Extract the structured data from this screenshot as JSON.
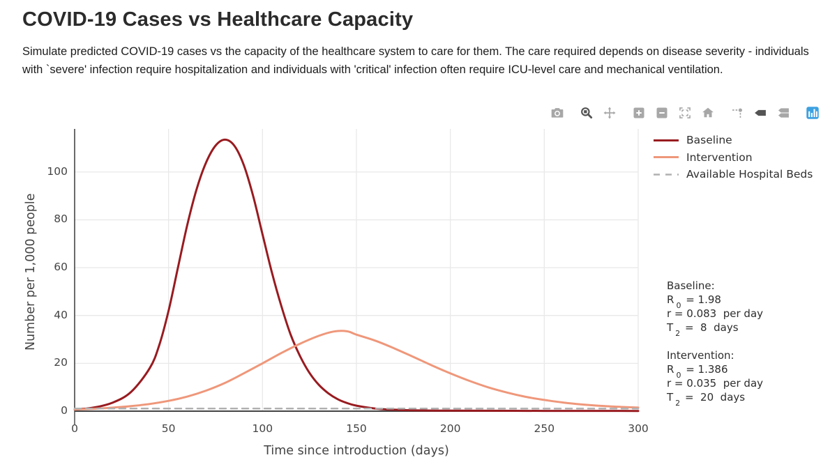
{
  "page": {
    "title": "COVID-19 Cases vs Healthcare Capacity",
    "description": "Simulate predicted COVID-19 cases vs the capacity of the healthcare system to care for them. The care required depends on disease severity - individuals with `severe' infection require hospitalization and individuals with 'critical' infection often require ICU-level care and mechanical ventilation."
  },
  "colors": {
    "baseline": "#981b20",
    "intervention": "#ef977a",
    "hospital_beds": "#b0b0b0",
    "axis": "#444444",
    "grid": "#e9e9e9",
    "modebar_inactive": "#a7a7a7",
    "modebar_active": "#545454",
    "plotly_logo_blue": "#3ca1e0"
  },
  "modebar": {
    "buttons": [
      {
        "icon": "camera-icon",
        "name": "download-plot-as-png",
        "active": false
      },
      {
        "icon": "zoom-icon",
        "name": "zoom",
        "active": true
      },
      {
        "icon": "pan-icon",
        "name": "pan",
        "active": false
      },
      {
        "icon": "zoom-in-icon",
        "name": "zoom-in",
        "active": false
      },
      {
        "icon": "zoom-out-icon",
        "name": "zoom-out",
        "active": false
      },
      {
        "icon": "autoscale-icon",
        "name": "autoscale",
        "active": false
      },
      {
        "icon": "home-icon",
        "name": "reset-axes",
        "active": false
      },
      {
        "icon": "spikelines-icon",
        "name": "toggle-spike-lines",
        "active": false
      },
      {
        "icon": "hover-closest-icon",
        "name": "show-closest-data-on-hover",
        "active": true
      },
      {
        "icon": "hover-compare-icon",
        "name": "compare-data-on-hover",
        "active": false
      },
      {
        "icon": "plotly-logo-icon",
        "name": "produced-with-plotly",
        "active": false
      }
    ]
  },
  "annotations": {
    "baseline": {
      "title": "Baseline:",
      "r0_pre": "R",
      "r0_sub": "0",
      "r0_post": " = 1.98",
      "r_line": "r = 0.083  per day",
      "t2_pre": "T",
      "t2_sub": "2",
      "t2_post": " =  8  days"
    },
    "intervention": {
      "title": "Intervention:",
      "r0_pre": "R",
      "r0_sub": "0",
      "r0_post": " = 1.386",
      "r_line": "r = 0.035  per day",
      "t2_pre": "T",
      "t2_sub": "2",
      "t2_post": " =  20  days"
    }
  },
  "chart_data": {
    "type": "line",
    "title": "",
    "xlabel": "Time since introduction (days)",
    "ylabel": "Number per 1,000 people",
    "xlim": [
      0,
      300
    ],
    "ylim": [
      0,
      118
    ],
    "x_ticks": [
      0,
      50,
      100,
      150,
      200,
      250,
      300
    ],
    "y_ticks": [
      0,
      20,
      40,
      60,
      80,
      100
    ],
    "grid": true,
    "legend_position": "right",
    "series": [
      {
        "name": "Baseline",
        "color": "#981b20",
        "dash": "solid",
        "width": 3,
        "points": [
          [
            0,
            0.7
          ],
          [
            10,
            1.5
          ],
          [
            20,
            3.5
          ],
          [
            30,
            8
          ],
          [
            40,
            18
          ],
          [
            45,
            27.5
          ],
          [
            50,
            42
          ],
          [
            55,
            60
          ],
          [
            60,
            78
          ],
          [
            65,
            93
          ],
          [
            70,
            104
          ],
          [
            75,
            111
          ],
          [
            80,
            113.5
          ],
          [
            85,
            111
          ],
          [
            90,
            103
          ],
          [
            95,
            90
          ],
          [
            100,
            74
          ],
          [
            105,
            58
          ],
          [
            110,
            44
          ],
          [
            115,
            32
          ],
          [
            120,
            23
          ],
          [
            125,
            16
          ],
          [
            130,
            11
          ],
          [
            135,
            7.5
          ],
          [
            140,
            5
          ],
          [
            145,
            3.4
          ],
          [
            150,
            2.3
          ],
          [
            160,
            1.1
          ],
          [
            170,
            0.6
          ],
          [
            180,
            0.35
          ],
          [
            200,
            0.2
          ],
          [
            250,
            0.12
          ],
          [
            300,
            0.1
          ]
        ]
      },
      {
        "name": "Intervention",
        "color": "#ef977a",
        "dash": "solid",
        "width": 3,
        "points": [
          [
            0,
            0.7
          ],
          [
            10,
            1.0
          ],
          [
            20,
            1.45
          ],
          [
            30,
            2.1
          ],
          [
            40,
            3.0
          ],
          [
            50,
            4.3
          ],
          [
            60,
            6.1
          ],
          [
            70,
            8.6
          ],
          [
            80,
            11.8
          ],
          [
            90,
            15.8
          ],
          [
            100,
            20
          ],
          [
            110,
            24.3
          ],
          [
            120,
            28.2
          ],
          [
            130,
            31.5
          ],
          [
            138,
            33.3
          ],
          [
            145,
            33.4
          ],
          [
            150,
            32
          ],
          [
            160,
            29.5
          ],
          [
            170,
            26.3
          ],
          [
            180,
            22.8
          ],
          [
            190,
            19.2
          ],
          [
            200,
            15.8
          ],
          [
            210,
            12.7
          ],
          [
            220,
            10
          ],
          [
            230,
            7.8
          ],
          [
            240,
            6
          ],
          [
            250,
            4.7
          ],
          [
            260,
            3.6
          ],
          [
            270,
            2.8
          ],
          [
            280,
            2.2
          ],
          [
            290,
            1.8
          ],
          [
            300,
            1.5
          ]
        ]
      },
      {
        "name": "Available Hospital Beds",
        "color": "#b0b0b0",
        "dash": "dash",
        "width": 2.5,
        "points": [
          [
            0,
            1.1
          ],
          [
            150,
            1.1
          ],
          [
            300,
            1.1
          ]
        ]
      }
    ]
  }
}
